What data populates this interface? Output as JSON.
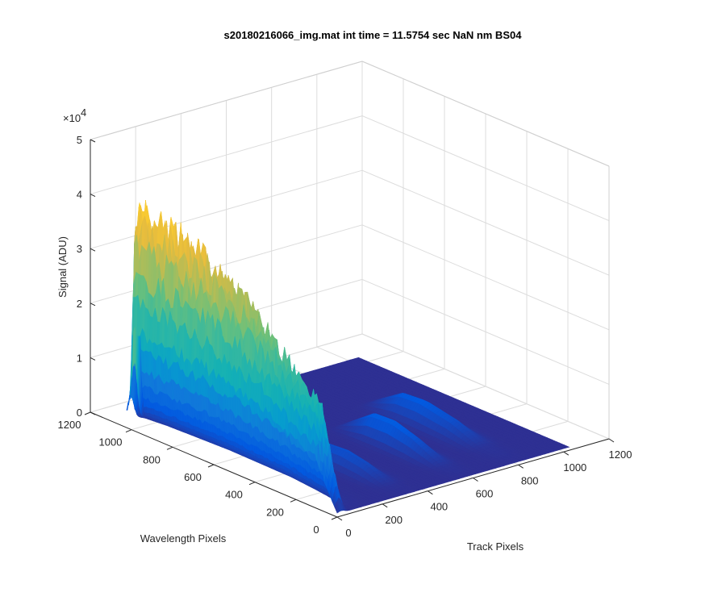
{
  "chart_data": {
    "type": "surface",
    "title": "s20180216066_img.mat int time = 11.5754 sec  NaN nm BS04",
    "xlabel": "Track Pixels",
    "ylabel": "Wavelength Pixels",
    "zlabel": "Signal (ADU)",
    "xlim": [
      0,
      1200
    ],
    "ylim": [
      0,
      1200
    ],
    "zlim": [
      0,
      50000
    ],
    "z_exponent_label": "×10",
    "z_exponent_power": "4",
    "x_ticks": [
      {
        "value": 0,
        "label": "0"
      },
      {
        "value": 200,
        "label": "200"
      },
      {
        "value": 400,
        "label": "400"
      },
      {
        "value": 600,
        "label": "600"
      },
      {
        "value": 800,
        "label": "800"
      },
      {
        "value": 1000,
        "label": "1000"
      },
      {
        "value": 1200,
        "label": "1200"
      }
    ],
    "y_ticks": [
      {
        "value": 0,
        "label": "0"
      },
      {
        "value": 200,
        "label": "200"
      },
      {
        "value": 400,
        "label": "400"
      },
      {
        "value": 600,
        "label": "600"
      },
      {
        "value": 800,
        "label": "800"
      },
      {
        "value": 1000,
        "label": "1000"
      },
      {
        "value": 1200,
        "label": "1200"
      }
    ],
    "z_ticks": [
      {
        "value": 0,
        "label": "0"
      },
      {
        "value": 10000,
        "label": "1"
      },
      {
        "value": 20000,
        "label": "2"
      },
      {
        "value": 30000,
        "label": "3"
      },
      {
        "value": 40000,
        "label": "4"
      },
      {
        "value": 50000,
        "label": "5"
      }
    ],
    "data_extent": {
      "x": [
        0,
        1024
      ],
      "y": [
        0,
        1024
      ]
    },
    "grid": true,
    "colormap": "parula",
    "color_range": [
      0,
      45000
    ],
    "base_level": 600,
    "features": [
      {
        "name": "main-track-ridge",
        "x_center": 18,
        "x_width": 14,
        "y_profile": [
          [
            0,
            1000
          ],
          [
            40,
            8000
          ],
          [
            80,
            16000
          ],
          [
            100,
            20000
          ],
          [
            200,
            22000
          ],
          [
            300,
            26000
          ],
          [
            400,
            30000
          ],
          [
            500,
            33000
          ],
          [
            600,
            36000
          ],
          [
            700,
            38500
          ],
          [
            800,
            40000
          ],
          [
            900,
            41000
          ],
          [
            950,
            43000
          ],
          [
            980,
            44000
          ],
          [
            1000,
            40000
          ],
          [
            1010,
            5000
          ]
        ]
      },
      {
        "name": "secondary-track-1",
        "x_center": 310,
        "x_width": 30,
        "y_profile": [
          [
            0,
            600
          ],
          [
            80,
            800
          ],
          [
            200,
            3000
          ],
          [
            300,
            3800
          ],
          [
            400,
            3500
          ],
          [
            500,
            600
          ]
        ]
      },
      {
        "name": "secondary-track-2",
        "x_center": 570,
        "x_width": 30,
        "y_profile": [
          [
            0,
            600
          ],
          [
            100,
            900
          ],
          [
            250,
            4000
          ],
          [
            350,
            5200
          ],
          [
            450,
            5000
          ],
          [
            600,
            600
          ]
        ]
      },
      {
        "name": "secondary-track-3",
        "x_center": 790,
        "x_width": 35,
        "y_profile": [
          [
            0,
            600
          ],
          [
            150,
            900
          ],
          [
            300,
            3500
          ],
          [
            450,
            4800
          ],
          [
            550,
            4500
          ],
          [
            700,
            600
          ]
        ]
      }
    ],
    "left_wall_ridge": [
      [
        0,
        600
      ],
      [
        150,
        3000
      ],
      [
        300,
        5000
      ],
      [
        600,
        5500
      ],
      [
        900,
        4000
      ],
      [
        1024,
        2500
      ]
    ]
  }
}
